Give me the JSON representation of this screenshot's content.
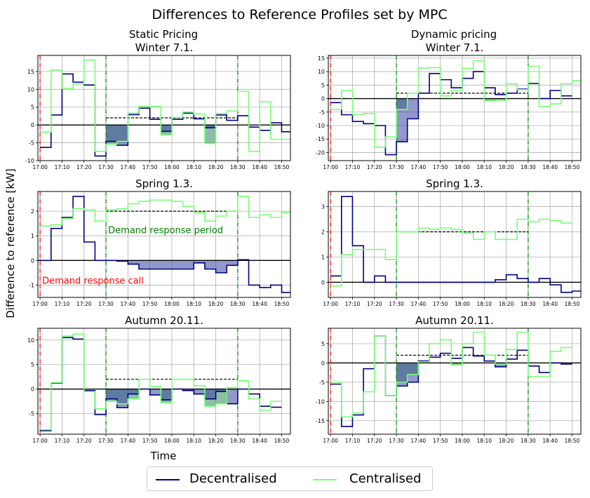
{
  "title": "Differences to Reference Profiles set by MPC",
  "ylabel": "Difference to reference [kW]",
  "xlabel": "Time",
  "colors": {
    "decentralised": "#000080",
    "centralised": "#77ff77",
    "grid": "#b0b0b0",
    "call": "#ff0000",
    "period": "#008000",
    "fill_dec": "#3a43a0",
    "fill_cen": "#2e8b57"
  },
  "legend": {
    "decentralised": "Decentralised",
    "centralised": "Centralised"
  },
  "annotations": {
    "period": "Demand response period",
    "call": "Demand response call"
  },
  "column_titles": {
    "static": "Static Pricing",
    "dynamic": "Dynamic pricing"
  },
  "chart_data": [
    {
      "type": "line",
      "title": "Winter 7.1.",
      "x_ticks": [
        "17:00",
        "17:10",
        "17:20",
        "17:30",
        "17:40",
        "17:50",
        "18:00",
        "18:10",
        "18:20",
        "18:30",
        "18:40",
        "18:50"
      ],
      "y_ticks": [
        -10,
        -5,
        0,
        5,
        10,
        15
      ],
      "ylim": [
        -10,
        19.5
      ],
      "reference_level": 2,
      "series": [
        {
          "name": "Decentralised",
          "values": [
            -6.3,
            2.8,
            14.3,
            12,
            11.2,
            -8.7,
            -4.6,
            -5.7,
            2.9,
            4.7,
            1.6,
            -1.8,
            1.6,
            3.3,
            1.7,
            -0.8,
            2.8,
            1.3,
            2.6,
            -0.6,
            -1.5,
            0.6,
            -1.9
          ]
        },
        {
          "name": "Centralised",
          "values": [
            -2,
            15.4,
            10.2,
            11.5,
            18.2,
            -7.4,
            -5.4,
            -4.6,
            3.3,
            5.2,
            5.2,
            -2.8,
            2.1,
            3.6,
            3.1,
            -5.2,
            3.2,
            3.9,
            9.4,
            -7.4,
            6.5,
            -4,
            -4
          ]
        }
      ]
    },
    {
      "type": "line",
      "title": "Winter 7.1.",
      "x_ticks": [
        "17:00",
        "17:10",
        "17:20",
        "17:30",
        "17:40",
        "17:50",
        "18:00",
        "18:10",
        "18:20",
        "18:30",
        "18:40",
        "18:50"
      ],
      "y_ticks": [
        -20,
        -15,
        -10,
        -5,
        0,
        5,
        10,
        15
      ],
      "ylim": [
        -23,
        16
      ],
      "reference_level": 2,
      "series": [
        {
          "name": "Decentralised",
          "values": [
            -1.5,
            -6,
            -8.5,
            -9.3,
            -10,
            -20.8,
            -16,
            -7.5,
            2,
            9.3,
            7,
            4,
            7.5,
            10,
            4,
            1.5,
            2,
            3.5,
            5.6,
            0,
            3,
            1
          ]
        },
        {
          "name": "Centralised",
          "values": [
            -4,
            3,
            -6,
            -5.5,
            -18,
            -14.2,
            -4,
            2,
            11.3,
            11.5,
            1,
            3,
            11.2,
            14,
            -0.8,
            -0.6,
            5.5,
            3.3,
            12,
            -3,
            -2,
            5.5,
            6.7
          ]
        }
      ]
    },
    {
      "type": "line",
      "title": "Spring 1.3.",
      "x_ticks": [
        "17:00",
        "17:10",
        "17:20",
        "17:30",
        "17:40",
        "17:50",
        "18:00",
        "18:10",
        "18:20",
        "18:30",
        "18:40",
        "18:50"
      ],
      "y_ticks": [
        -1,
        0,
        1,
        2
      ],
      "ylim": [
        -1.5,
        2.8
      ],
      "reference_level": 2,
      "series": [
        {
          "name": "Decentralised",
          "values": [
            0,
            1.3,
            1.75,
            2.6,
            0.75,
            0,
            0,
            -0.03,
            -0.15,
            -0.35,
            -0.35,
            -0.35,
            -0.35,
            -0.35,
            -0.1,
            -0.35,
            -0.5,
            -0.2,
            0.03,
            -1,
            -1.1,
            -1,
            -1.3
          ]
        },
        {
          "name": "Centralised",
          "values": [
            1.4,
            1.45,
            1.7,
            2.1,
            2.05,
            1.6,
            2.05,
            2.1,
            2.3,
            2.4,
            2.45,
            2.45,
            2.4,
            2.2,
            1.95,
            1.6,
            1.8,
            2,
            2.6,
            1.75,
            1.85,
            1.75,
            1.95
          ]
        }
      ]
    },
    {
      "type": "line",
      "title": "Spring 1.3.",
      "x_ticks": [
        "17:00",
        "17:10",
        "17:20",
        "17:30",
        "17:40",
        "17:50",
        "18:00",
        "18:10",
        "18:20",
        "18:30",
        "18:40",
        "18:50"
      ],
      "y_ticks": [
        0,
        1,
        2,
        3
      ],
      "ylim": [
        -0.6,
        3.6
      ],
      "reference_level": 2,
      "series": [
        {
          "name": "Decentralised",
          "values": [
            0.25,
            3.4,
            1.45,
            0,
            0.25,
            0,
            0,
            0,
            0,
            0,
            0,
            0,
            0,
            0,
            0,
            0.1,
            0.3,
            0.15,
            0,
            0.15,
            -0.1,
            -0.4,
            -0.35
          ]
        },
        {
          "name": "Centralised",
          "values": [
            -0.15,
            1.1,
            1.3,
            1.3,
            1.3,
            0.9,
            2,
            2,
            2.15,
            2.1,
            2.15,
            2.1,
            1.95,
            1.7,
            2,
            1.7,
            1.7,
            2.5,
            2.4,
            2.5,
            2.45,
            2.35
          ]
        }
      ]
    },
    {
      "type": "line",
      "title": "Autumn 20.11.",
      "x_ticks": [
        "17:00",
        "17:10",
        "17:20",
        "17:30",
        "17:40",
        "17:50",
        "18:00",
        "18:10",
        "18:20",
        "18:30",
        "18:40",
        "18:50"
      ],
      "y_ticks": [
        -5,
        0,
        5,
        10
      ],
      "ylim": [
        -9.2,
        12.4
      ],
      "reference_level": 2,
      "series": [
        {
          "name": "Decentralised",
          "values": [
            -8.5,
            1.2,
            10.5,
            10.2,
            -0.3,
            -5.2,
            -2,
            -3.8,
            -1,
            0,
            -1.2,
            -2.2,
            0,
            -0.3,
            -1,
            -2,
            -0.5,
            -3,
            0,
            -1,
            -3.5,
            -3.7
          ]
        },
        {
          "name": "Centralised",
          "values": [
            -8.3,
            1.3,
            10.8,
            11.2,
            -0.5,
            -4,
            -2.5,
            -3,
            -2,
            2,
            0.5,
            -2.8,
            2,
            2,
            0.7,
            -3.5,
            -3,
            0.3,
            1.7,
            -2,
            -4.3,
            -2.5
          ]
        }
      ]
    },
    {
      "type": "line",
      "title": "Autumn 20.11.",
      "x_ticks": [
        "17:00",
        "17:10",
        "17:20",
        "17:30",
        "17:40",
        "17:50",
        "18:00",
        "18:10",
        "18:20",
        "18:30",
        "18:40",
        "18:50"
      ],
      "y_ticks": [
        -15,
        -10,
        -5,
        0,
        5
      ],
      "ylim": [
        -18.5,
        9
      ],
      "reference_level": 2,
      "series": [
        {
          "name": "Decentralised",
          "values": [
            -5.5,
            -16.5,
            -13.5,
            -1.5,
            7,
            -8.5,
            -6,
            -5,
            0.5,
            1.5,
            2.5,
            1.2,
            4,
            1.8,
            0.5,
            -1,
            1,
            3.3,
            -0.8,
            -2.5,
            0,
            -0.3
          ]
        },
        {
          "name": "Centralised",
          "values": [
            -5,
            -14,
            -13,
            -7.5,
            7,
            -8.5,
            -5,
            -3,
            0.3,
            5,
            6,
            -0.5,
            5,
            8,
            2,
            -0.3,
            3.5,
            8,
            -3.5,
            -3.5,
            3,
            4
          ]
        }
      ]
    }
  ]
}
